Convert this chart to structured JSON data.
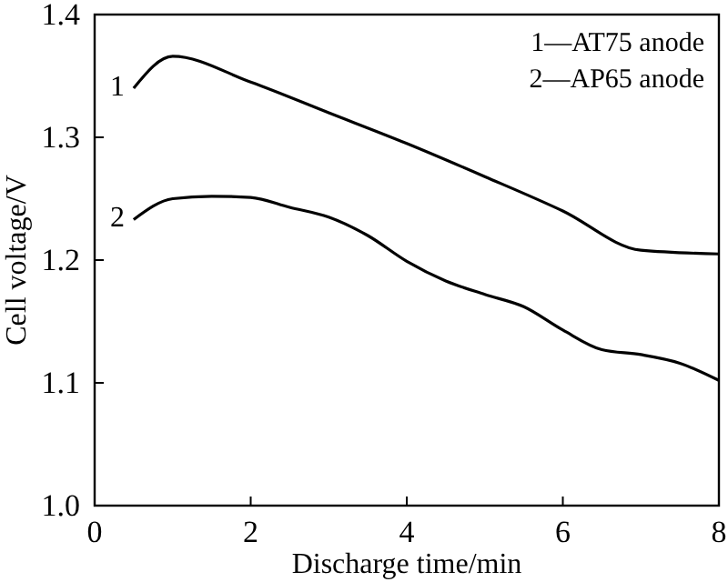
{
  "chart_data": {
    "type": "line",
    "xlabel": "Discharge time/min",
    "ylabel": "Cell voltage/V",
    "xlim": [
      0,
      8
    ],
    "ylim": [
      1.0,
      1.4
    ],
    "xticks": [
      0,
      2,
      4,
      6,
      8
    ],
    "yticks": [
      {
        "value": 1.0,
        "label": "1.0"
      },
      1.1,
      1.2,
      1.3,
      1.4
    ],
    "grid": false,
    "legend": false,
    "marker": "none",
    "line_style": "solid",
    "series": [
      {
        "name": "1",
        "color": "#000000",
        "x": [
          0.5,
          1,
          2,
          3,
          4,
          5,
          6,
          7,
          8
        ],
        "values": [
          1.34,
          1.366,
          1.345,
          1.32,
          1.295,
          1.268,
          1.24,
          1.208,
          1.205
        ]
      },
      {
        "name": "2",
        "color": "#000000",
        "x": [
          0.5,
          1,
          1.5,
          2,
          2.5,
          3,
          3.5,
          4,
          4.5,
          5,
          5.5,
          6,
          6.5,
          7,
          7.5,
          8
        ],
        "values": [
          1.233,
          1.25,
          1.252,
          1.251,
          1.243,
          1.235,
          1.22,
          1.199,
          1.183,
          1.172,
          1.162,
          1.143,
          1.127,
          1.123,
          1.116,
          1.102
        ]
      }
    ],
    "annotations": [
      "1—AT75 anode",
      "2—AP65 anode"
    ]
  }
}
